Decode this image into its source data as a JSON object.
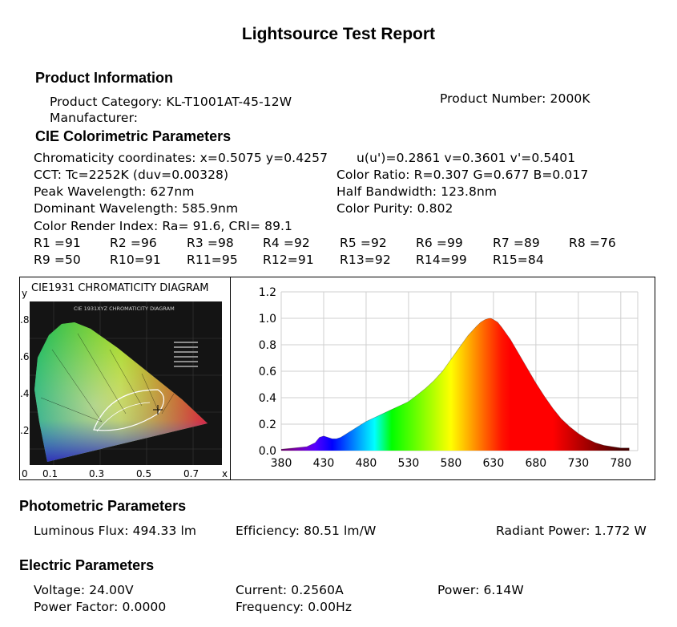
{
  "report": {
    "title": "Lightsource Test Report"
  },
  "product": {
    "heading": "Product Information",
    "category": "Product Category: KL-T1001AT-45-12W",
    "number": "Product Number: 2000K",
    "manufacturer": "Manufacturer:"
  },
  "cie": {
    "heading": "CIE Colorimetric Parameters",
    "chromaticity": "Chromaticity coordinates: x=0.5075 y=0.4257",
    "uv": "u(u')=0.2861 v=0.3601 v'=0.5401",
    "cct": "CCT: Tc=2252K (duv=0.00328)",
    "ratio": "Color Ratio: R=0.307  G=0.677  B=0.017",
    "peak": "Peak Wavelength: 627nm",
    "half": "Half Bandwidth: 123.8nm",
    "dominant": "Dominant Wavelength: 585.9nm",
    "purity": "Color Purity: 0.802",
    "cri": "Color Render Index: Ra= 91.6, CRI= 89.1",
    "r_row1": [
      "R1 =91",
      "R2 =96",
      "R3 =98",
      "R4 =92",
      "R5 =92",
      "R6 =99",
      "R7 =89",
      "R8 =76"
    ],
    "r_row2": [
      "R9 =50",
      "R10=91",
      "R11=95",
      "R12=91",
      "R13=92",
      "R14=99",
      "R15=84"
    ]
  },
  "diagram": {
    "title": "CIE1931 CHROMATICITY DIAGRAM",
    "inner_title": "CIE 1931XYZ CHROMATICITY DIAGRAM",
    "y_axis_label": "y",
    "x_axis_label": "x",
    "y_ticks": [
      ".8",
      ".6",
      ".4",
      ".2"
    ],
    "x_ticks": [
      "0",
      "0.1",
      "0.3",
      "0.5",
      "0.7"
    ],
    "point": {
      "x": 0.5075,
      "y": 0.4257
    }
  },
  "chart_data": {
    "type": "area",
    "title": "",
    "xlabel": "",
    "ylabel": "",
    "xlim": [
      380,
      800
    ],
    "ylim": [
      0,
      1.2
    ],
    "x_ticks": [
      380,
      430,
      480,
      530,
      580,
      630,
      680,
      730,
      780
    ],
    "y_ticks": [
      "0.0",
      "0.2",
      "0.4",
      "0.6",
      "0.8",
      "1.0",
      "1.2"
    ],
    "grid": true,
    "series": [
      {
        "name": "",
        "x": [
          380,
          395,
          410,
          420,
          425,
          430,
          435,
          440,
          445,
          450,
          455,
          460,
          465,
          470,
          480,
          490,
          500,
          510,
          520,
          530,
          540,
          550,
          560,
          570,
          580,
          590,
          600,
          610,
          615,
          620,
          625,
          627,
          630,
          635,
          640,
          650,
          660,
          670,
          680,
          690,
          700,
          710,
          720,
          730,
          740,
          750,
          760,
          770,
          780,
          790
        ],
        "y": [
          0.01,
          0.02,
          0.03,
          0.06,
          0.1,
          0.11,
          0.1,
          0.09,
          0.09,
          0.1,
          0.12,
          0.14,
          0.16,
          0.18,
          0.22,
          0.25,
          0.28,
          0.31,
          0.34,
          0.37,
          0.42,
          0.47,
          0.53,
          0.6,
          0.69,
          0.78,
          0.87,
          0.94,
          0.97,
          0.99,
          1.0,
          1.0,
          0.99,
          0.97,
          0.93,
          0.84,
          0.73,
          0.62,
          0.51,
          0.41,
          0.32,
          0.24,
          0.18,
          0.13,
          0.09,
          0.06,
          0.04,
          0.03,
          0.02,
          0.02
        ]
      }
    ]
  },
  "photometric": {
    "heading": "Photometric Parameters",
    "flux": "Luminous Flux: 494.33 lm",
    "efficiency": "Efficiency: 80.51 lm/W",
    "radiant": "Radiant Power: 1.772 W"
  },
  "electric": {
    "heading": "Electric Parameters",
    "voltage": "Voltage: 24.00V",
    "current": "Current: 0.2560A",
    "power": "Power: 6.14W",
    "pf": "Power Factor: 0.0000",
    "frequency": "Frequency: 0.00Hz"
  }
}
